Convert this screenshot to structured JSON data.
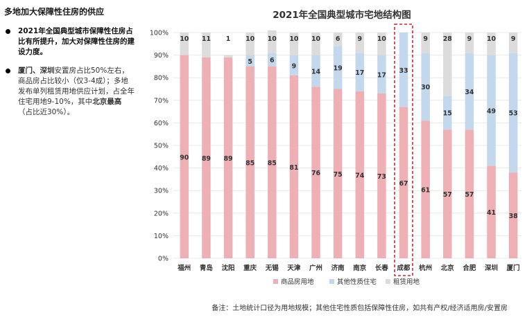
{
  "page_title": "多地加大保障性住房的供应",
  "bullets": [
    {
      "parts": [
        {
          "text": "2021年全国典型城市保障性住房占比有所提升，加大对保障性住房的建设力度。",
          "bold": true
        }
      ]
    },
    {
      "parts": [
        {
          "text": "厦门、深圳",
          "bold": true
        },
        {
          "text": "安置房占比50%左右，商品房占比较小（仅3-4成）；多地发布单列租赁用地供应计划，占全年住宅用地9-10%，其中",
          "bold": false
        },
        {
          "text": "北京最高",
          "bold": true
        },
        {
          "text": "（占比近30%）。",
          "bold": false
        }
      ]
    }
  ],
  "footnote": "备注：土地统计口径为用地规模；其他住宅性质包括保障性住房，如共有产权/经济适用房/安置房",
  "colors": {
    "commercial": "#eeb0b5",
    "other": "#c3d8ec",
    "rental": "#dcdcdc",
    "highlight": "#d9232d",
    "grid": "#e8e8e8"
  },
  "chart_data": {
    "type": "bar",
    "stacked": true,
    "percent": true,
    "title": "2021年全国典型城市宅地结构图",
    "categories": [
      "福州",
      "青岛",
      "沈阳",
      "重庆",
      "无锡",
      "天津",
      "广州",
      "济南",
      "南京",
      "长春",
      "成都",
      "杭州",
      "北京",
      "合肥",
      "深圳",
      "厦门"
    ],
    "series": [
      {
        "name": "商品房用地",
        "color": "#eeb0b5",
        "values": [
          90,
          89,
          89,
          85,
          85,
          81,
          76,
          75,
          74,
          73,
          67,
          61,
          57,
          57,
          41,
          38
        ]
      },
      {
        "name": "其他性质住宅",
        "color": "#c3d8ec",
        "values": [
          null,
          null,
          null,
          5,
          6,
          9,
          14,
          19,
          17,
          17,
          33,
          30,
          15,
          34,
          49,
          53
        ]
      },
      {
        "name": "租赁用地",
        "color": "#dcdcdc",
        "values": [
          10,
          11,
          1,
          10,
          10,
          10,
          10,
          6,
          9,
          10,
          null,
          9,
          28,
          9,
          10,
          9
        ]
      }
    ],
    "ylim": [
      0,
      100
    ],
    "yticks": [
      "0%",
      "10%",
      "20%",
      "30%",
      "40%",
      "50%",
      "60%",
      "70%",
      "80%",
      "90%",
      "100%"
    ],
    "highlight_category": "成都",
    "legend": "bottom"
  }
}
